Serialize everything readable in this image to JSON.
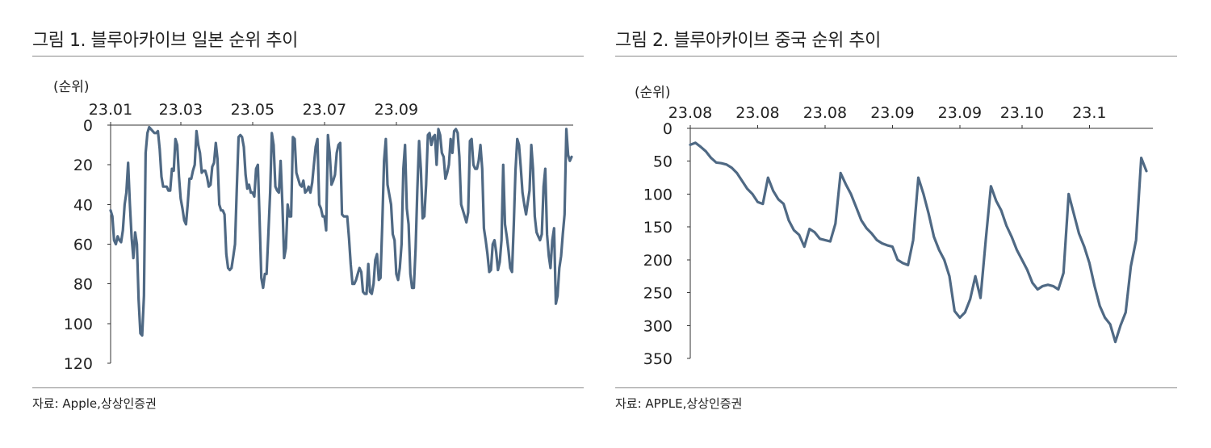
{
  "figures": [
    {
      "title": "그림 1. 블루아카이브 일본 순위 추이",
      "source": "자료: Apple,상상인증권"
    },
    {
      "title": "그림 2. 블루아카이브 중국 순위 추이",
      "source": "자료: APPLE,상상인증권"
    }
  ],
  "colors": {
    "series": "#4f6984",
    "rule": "#8a8a8a"
  },
  "chart_data": [
    {
      "type": "line",
      "title": "그림 1. 블루아카이브 일본 순위 추이",
      "ylabel": "(순위)",
      "y_inverted": true,
      "ylim": [
        0,
        120
      ],
      "yticks": [
        0,
        20,
        40,
        60,
        80,
        100,
        120
      ],
      "xaxis_position": "top",
      "xtick_labels": [
        "23.01",
        "23.03",
        "23.05",
        "23.07",
        "23.09"
      ],
      "xtick_index": [
        0,
        40,
        81,
        122,
        163
      ],
      "series": [
        {
          "values": [
            43,
            46,
            58,
            60,
            56,
            58,
            59,
            53,
            40,
            34,
            19,
            40,
            57,
            67,
            54,
            60,
            88,
            105,
            106,
            86,
            14,
            4,
            1,
            2,
            3,
            4,
            4,
            3,
            12,
            26,
            31,
            31,
            31,
            33,
            33,
            22,
            23,
            7,
            10,
            26,
            37,
            42,
            48,
            50,
            40,
            27,
            27,
            23,
            20,
            3,
            10,
            14,
            24,
            23,
            23,
            26,
            31,
            30,
            21,
            19,
            9,
            17,
            40,
            43,
            43,
            45,
            65,
            72,
            73,
            72,
            66,
            60,
            32,
            6,
            5,
            6,
            11,
            25,
            32,
            30,
            34,
            34,
            36,
            22,
            20,
            47,
            77,
            82,
            75,
            75,
            55,
            34,
            4,
            10,
            31,
            33,
            34,
            18,
            40,
            67,
            62,
            40,
            46,
            46,
            6,
            7,
            24,
            27,
            30,
            31,
            28,
            34,
            33,
            31,
            34,
            29,
            20,
            11,
            7,
            40,
            42,
            46,
            46,
            53,
            5,
            14,
            30,
            28,
            25,
            14,
            10,
            9,
            45,
            46,
            46,
            46,
            57,
            70,
            80,
            80,
            78,
            75,
            72,
            74,
            84,
            85,
            85,
            70,
            84,
            85,
            80,
            68,
            65,
            78,
            77,
            50,
            18,
            7,
            30,
            35,
            40,
            55,
            58,
            75,
            78,
            72,
            60,
            22,
            10,
            42,
            50,
            75,
            82,
            82,
            62,
            33,
            8,
            22,
            47,
            46,
            30,
            5,
            4,
            10,
            6,
            5,
            20,
            2,
            5,
            14,
            16,
            27,
            24,
            20,
            7,
            14,
            3,
            2,
            4,
            16,
            40,
            43,
            46,
            49,
            44,
            8,
            7,
            20,
            22,
            22,
            18,
            10,
            22,
            52,
            58,
            65,
            74,
            73,
            60,
            58,
            64,
            73,
            69,
            58,
            20,
            50,
            56,
            63,
            72,
            74,
            50,
            23,
            7,
            10,
            21,
            34,
            40,
            45,
            39,
            33,
            10,
            22,
            46,
            54,
            56,
            58,
            55,
            31,
            22,
            55,
            66,
            72,
            58,
            52,
            90,
            86,
            72,
            66,
            55,
            45,
            2,
            15,
            18,
            16
          ]
        }
      ]
    },
    {
      "type": "line",
      "title": "그림 2. 블루아카이브 중국 순위 추이",
      "ylabel": "(순위)",
      "y_inverted": true,
      "ylim": [
        0,
        350
      ],
      "yticks": [
        0,
        50,
        100,
        150,
        200,
        250,
        300,
        350
      ],
      "xaxis_position": "top",
      "xtick_labels": [
        "23.08",
        "23.08",
        "23.08",
        "23.09",
        "23.09",
        "23.10",
        "23.1"
      ],
      "xtick_index": [
        0,
        13,
        26,
        39,
        52,
        64,
        77
      ],
      "series": [
        {
          "values": [
            25,
            22,
            28,
            35,
            45,
            52,
            53,
            55,
            60,
            68,
            80,
            92,
            100,
            112,
            115,
            75,
            95,
            108,
            115,
            140,
            155,
            162,
            180,
            153,
            158,
            168,
            170,
            172,
            145,
            68,
            85,
            100,
            120,
            140,
            152,
            160,
            170,
            175,
            178,
            180,
            200,
            205,
            208,
            170,
            75,
            100,
            130,
            165,
            185,
            200,
            225,
            278,
            288,
            280,
            260,
            225,
            258,
            170,
            88,
            110,
            125,
            148,
            165,
            185,
            200,
            215,
            235,
            245,
            240,
            238,
            240,
            245,
            220,
            100,
            130,
            160,
            180,
            205,
            240,
            270,
            288,
            298,
            325,
            300,
            280,
            210,
            170,
            45,
            65
          ]
        }
      ]
    }
  ]
}
